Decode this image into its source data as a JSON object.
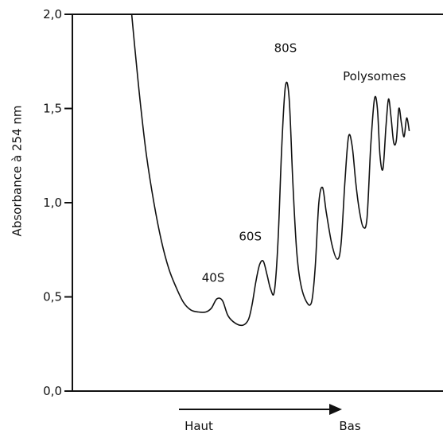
{
  "chart_data": {
    "type": "line",
    "title": "",
    "xlabel": "",
    "ylabel": "Absorbance à 254 nm",
    "ylim": [
      0.0,
      2.0
    ],
    "xlim": [
      0,
      100
    ],
    "yticks": [
      {
        "value": 0.0,
        "label": "0,0"
      },
      {
        "value": 0.5,
        "label": "0,5"
      },
      {
        "value": 1.0,
        "label": "1,0"
      },
      {
        "value": 1.5,
        "label": "1,5"
      },
      {
        "value": 2.0,
        "label": "2,0"
      }
    ],
    "grid": false,
    "series": [
      {
        "points": [
          [
            16.0,
            2.0
          ],
          [
            17.2,
            1.75
          ],
          [
            18.5,
            1.5
          ],
          [
            20.0,
            1.25
          ],
          [
            22.0,
            1.0
          ],
          [
            24.0,
            0.8
          ],
          [
            26.0,
            0.65
          ],
          [
            28.0,
            0.55
          ],
          [
            30.0,
            0.47
          ],
          [
            32.0,
            0.43
          ],
          [
            34.0,
            0.42
          ],
          [
            36.0,
            0.42
          ],
          [
            37.5,
            0.44
          ],
          [
            39.0,
            0.49
          ],
          [
            40.5,
            0.48
          ],
          [
            42.0,
            0.4
          ],
          [
            44.0,
            0.36
          ],
          [
            46.0,
            0.35
          ],
          [
            47.5,
            0.38
          ],
          [
            48.5,
            0.46
          ],
          [
            49.5,
            0.58
          ],
          [
            50.5,
            0.67
          ],
          [
            51.5,
            0.69
          ],
          [
            52.5,
            0.62
          ],
          [
            53.5,
            0.54
          ],
          [
            54.5,
            0.53
          ],
          [
            55.5,
            0.8
          ],
          [
            56.5,
            1.3
          ],
          [
            57.5,
            1.62
          ],
          [
            58.5,
            1.55
          ],
          [
            59.5,
            1.1
          ],
          [
            60.5,
            0.75
          ],
          [
            61.5,
            0.58
          ],
          [
            63.0,
            0.48
          ],
          [
            64.5,
            0.47
          ],
          [
            65.5,
            0.65
          ],
          [
            66.5,
            1.0
          ],
          [
            67.5,
            1.08
          ],
          [
            68.5,
            0.95
          ],
          [
            70.0,
            0.78
          ],
          [
            71.5,
            0.7
          ],
          [
            72.5,
            0.78
          ],
          [
            73.5,
            1.1
          ],
          [
            74.5,
            1.35
          ],
          [
            75.5,
            1.3
          ],
          [
            76.5,
            1.1
          ],
          [
            77.5,
            0.95
          ],
          [
            78.5,
            0.87
          ],
          [
            79.5,
            0.92
          ],
          [
            80.5,
            1.3
          ],
          [
            81.5,
            1.55
          ],
          [
            82.3,
            1.5
          ],
          [
            83.0,
            1.25
          ],
          [
            83.8,
            1.18
          ],
          [
            84.6,
            1.4
          ],
          [
            85.3,
            1.55
          ],
          [
            86.0,
            1.45
          ],
          [
            86.7,
            1.32
          ],
          [
            87.4,
            1.33
          ],
          [
            88.1,
            1.5
          ],
          [
            88.8,
            1.42
          ],
          [
            89.5,
            1.35
          ],
          [
            90.2,
            1.45
          ],
          [
            90.9,
            1.38
          ]
        ]
      }
    ],
    "annotations": [
      {
        "text": "40S",
        "x": 38.0,
        "y": 0.58
      },
      {
        "text": "60S",
        "x": 48.0,
        "y": 0.8
      },
      {
        "text": "80S",
        "x": 57.5,
        "y": 1.8
      },
      {
        "text": "Polysomes",
        "x": 81.5,
        "y": 1.65
      }
    ],
    "direction": {
      "from": "Haut",
      "to": "Bas"
    }
  }
}
